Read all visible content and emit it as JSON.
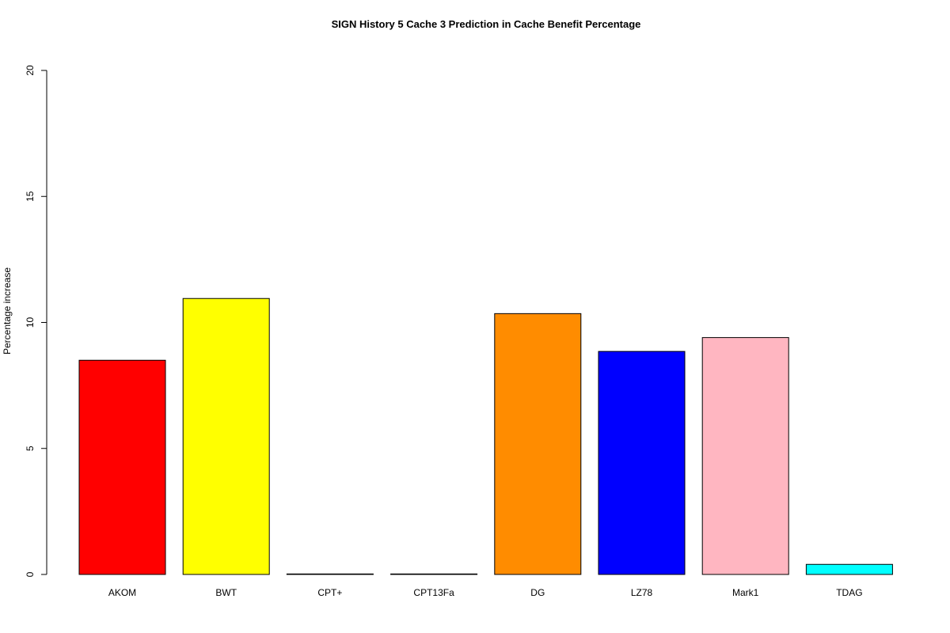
{
  "chart_data": {
    "type": "bar",
    "title": "SIGN  History  5  Cache  3 Prediction in Cache Benefit Percentage",
    "xlabel": "",
    "ylabel": "Percentage increase",
    "categories": [
      "AKOM",
      "BWT",
      "CPT+",
      "CPT13Fa",
      "DG",
      "LZ78",
      "Mark1",
      "TDAG"
    ],
    "values": [
      8.5,
      10.95,
      0.02,
      0.02,
      10.35,
      8.85,
      9.4,
      0.4
    ],
    "colors": [
      "#ff0000",
      "#ffff00",
      "#000000",
      "#000000",
      "#ff8c00",
      "#0000ff",
      "#ffb6c1",
      "#00ffff"
    ],
    "ylim": [
      0,
      20
    ],
    "yticks": [
      0,
      5,
      10,
      15,
      20
    ],
    "grid": false,
    "legend": "none"
  }
}
